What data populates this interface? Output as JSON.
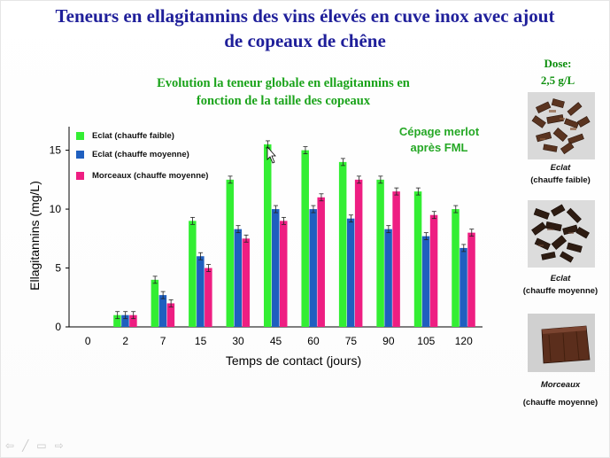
{
  "slide": {
    "title_line1": "Teneurs en ellagitannins des vins élevés en cuve inox avec ajout",
    "title_line2": "de copeaux de chêne"
  },
  "chart_data": {
    "type": "bar",
    "title_line1": "Evolution la teneur globale en ellagitannins en",
    "title_line2": "fonction de la taille des copeaux",
    "annotation_line1": "Cépage merlot",
    "annotation_line2": "après FML",
    "xlabel": "Temps de contact (jours)",
    "ylabel": "Ellagitannins (mg/L)",
    "ylim": [
      0,
      17
    ],
    "yticks": [
      0,
      5,
      10,
      15
    ],
    "categories": [
      "0",
      "2",
      "7",
      "15",
      "30",
      "45",
      "60",
      "75",
      "90",
      "105",
      "120"
    ],
    "series": [
      {
        "name": "Eclat (chauffe faible)",
        "color": "#33ee33",
        "values": [
          0,
          1.0,
          4.0,
          9.0,
          12.5,
          15.5,
          15.0,
          14.0,
          12.5,
          11.5,
          10.0
        ]
      },
      {
        "name": "Eclat (chauffe moyenne)",
        "color": "#1f5fbf",
        "values": [
          0,
          1.0,
          2.7,
          6.0,
          8.3,
          10.0,
          10.0,
          9.2,
          8.3,
          7.7,
          6.7
        ]
      },
      {
        "name": "Morceaux (chauffe moyenne)",
        "color": "#ee1e82",
        "values": [
          0,
          1.0,
          2.0,
          5.0,
          7.5,
          9.0,
          11.0,
          12.5,
          11.5,
          9.5,
          8.0
        ]
      }
    ],
    "error_bars": true,
    "grid": false,
    "legend": "top-left"
  },
  "side": {
    "dose_line1": "Dose:",
    "dose_line2": "2,5 g/L",
    "photos": [
      {
        "name": "Eclat",
        "detail": "(chauffe faible)"
      },
      {
        "name": "Eclat",
        "detail": "(chauffe moyenne)"
      },
      {
        "name": "Morceaux",
        "detail": "(chauffe moyenne)"
      }
    ]
  },
  "nav": [
    "⇦",
    "╱",
    "▭",
    "⇨"
  ]
}
